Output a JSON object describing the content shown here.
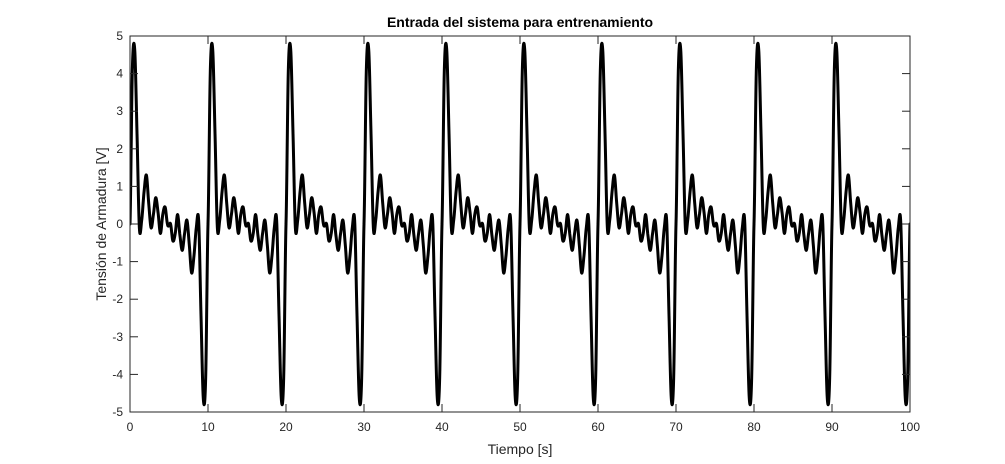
{
  "chart_data": {
    "type": "line",
    "title": "Entrada del sistema para entrenamiento",
    "xlabel": "Tiempo [s]",
    "ylabel": "Tensión de Armadura [V]",
    "xlim": [
      0,
      100
    ],
    "ylim": [
      -5,
      5
    ],
    "xticks": [
      0,
      10,
      20,
      30,
      40,
      50,
      60,
      70,
      80,
      90,
      100
    ],
    "yticks": [
      -5,
      -4,
      -3,
      -2,
      -1,
      0,
      1,
      2,
      3,
      4,
      5
    ],
    "xtick_labels": [
      "0",
      "10",
      "20",
      "30",
      "40",
      "50",
      "60",
      "70",
      "80",
      "90",
      "100"
    ],
    "ytick_labels": [
      "-5",
      "-4",
      "-3",
      "-2",
      "-1",
      "0",
      "1",
      "2",
      "3",
      "4",
      "5"
    ],
    "grid": false,
    "legend": "none",
    "colors": {
      "line": "#000000",
      "axes": "#262626",
      "background": "#ffffff"
    },
    "series": [
      {
        "period": 10,
        "x": [
          0,
          0.3,
          0.6,
          0.9,
          1.2,
          1.5,
          1.8,
          2.1,
          2.4,
          2.7,
          3.0,
          3.3,
          3.6,
          3.9,
          4.2,
          4.5,
          4.8,
          5.0,
          5.2,
          5.5,
          5.8,
          6.1,
          6.4,
          6.7,
          7.0,
          7.3,
          7.6,
          7.9,
          8.2,
          8.5,
          8.8,
          9.1,
          9.4,
          9.7,
          10.0
        ],
        "y": [
          0,
          4.1,
          4.65,
          2.4,
          -0.1,
          0.1,
          0.85,
          1.3,
          0.55,
          -0.1,
          0.25,
          0.7,
          0.3,
          -0.25,
          0.25,
          0.45,
          0.0,
          -0.05,
          0.0,
          -0.45,
          -0.25,
          0.25,
          -0.3,
          -0.7,
          -0.25,
          0.1,
          -0.55,
          -1.3,
          -0.85,
          -0.1,
          0.1,
          -2.4,
          -4.65,
          -4.1,
          0
        ]
      }
    ]
  }
}
